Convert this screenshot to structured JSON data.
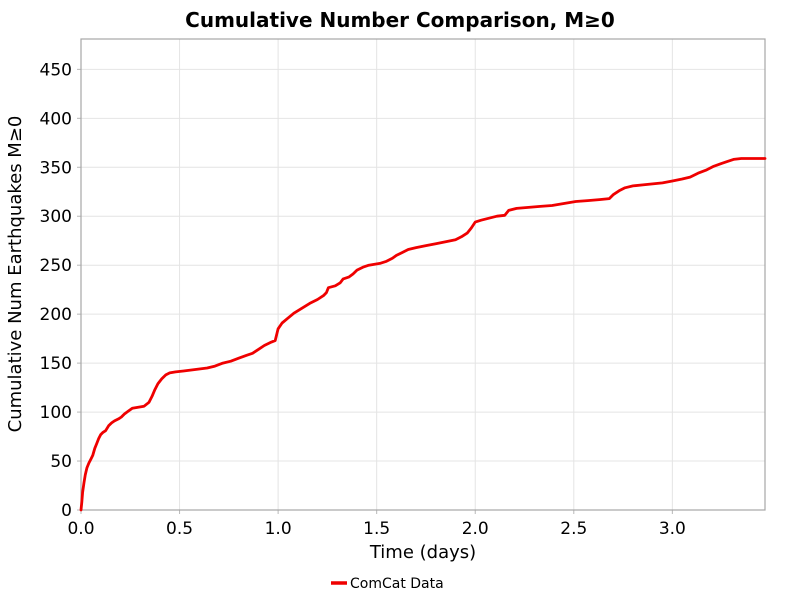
{
  "figure_title": "Cumulative Number Comparison, M≥0",
  "colors": {
    "series_red": "#ef0000",
    "grid": "#e4e4e4",
    "spine": "#a6a6a6",
    "text": "#000000",
    "background": "#ffffff"
  },
  "legend": {
    "items": [
      {
        "label": "ComCat Data",
        "color": "#ef0000",
        "marker": "line"
      }
    ]
  },
  "chart_data": {
    "type": "line",
    "title": "Cumulative Number Comparison, M≥0",
    "xlabel": "Time (days)",
    "ylabel": "Cumulative Num Earthquakes M≥0",
    "xlim": [
      0,
      3.47
    ],
    "ylim": [
      0,
      481
    ],
    "xticks": [
      0.0,
      0.5,
      1.0,
      1.5,
      2.0,
      2.5,
      3.0
    ],
    "yticks": [
      0,
      50,
      100,
      150,
      200,
      250,
      300,
      350,
      400,
      450
    ],
    "grid": true,
    "legend_position": "below",
    "series": [
      {
        "name": "ComCat Data",
        "color": "#ef0000",
        "x": [
          0,
          0.004,
          0.008,
          0.015,
          0.022,
          0.03,
          0.04,
          0.05,
          0.06,
          0.07,
          0.08,
          0.09,
          0.1,
          0.11,
          0.125,
          0.14,
          0.155,
          0.17,
          0.19,
          0.205,
          0.22,
          0.24,
          0.26,
          0.29,
          0.32,
          0.345,
          0.36,
          0.375,
          0.39,
          0.41,
          0.43,
          0.45,
          0.48,
          0.52,
          0.56,
          0.6,
          0.64,
          0.68,
          0.72,
          0.76,
          0.8,
          0.84,
          0.87,
          0.9,
          0.93,
          0.96,
          0.985,
          1.0,
          1.02,
          1.05,
          1.08,
          1.12,
          1.16,
          1.2,
          1.23,
          1.245,
          1.255,
          1.29,
          1.315,
          1.33,
          1.36,
          1.38,
          1.4,
          1.43,
          1.46,
          1.52,
          1.55,
          1.58,
          1.6,
          1.63,
          1.66,
          1.7,
          1.75,
          1.8,
          1.85,
          1.9,
          1.93,
          1.96,
          1.98,
          2.0,
          2.03,
          2.07,
          2.11,
          2.15,
          2.17,
          2.21,
          2.27,
          2.33,
          2.39,
          2.45,
          2.51,
          2.57,
          2.63,
          2.68,
          2.7,
          2.73,
          2.76,
          2.8,
          2.85,
          2.9,
          2.95,
          3.0,
          3.05,
          3.09,
          3.13,
          3.17,
          3.21,
          3.25,
          3.28,
          3.31,
          3.35,
          3.4,
          3.47
        ],
        "y": [
          0,
          8,
          18,
          28,
          36,
          43,
          48,
          52,
          56,
          63,
          68,
          73,
          77,
          79,
          81,
          86,
          89,
          91,
          93,
          95,
          98,
          101,
          104,
          105,
          106,
          110,
          116,
          123,
          129,
          134,
          138,
          140,
          141,
          142,
          143,
          144,
          145,
          147,
          150,
          152,
          155,
          158,
          160,
          164,
          168,
          171,
          173,
          185,
          191,
          196,
          201,
          206,
          211,
          215,
          219,
          222,
          227,
          229,
          232,
          236,
          238,
          241,
          245,
          248,
          250,
          252,
          254,
          257,
          260,
          263,
          266,
          268,
          270,
          272,
          274,
          276,
          279,
          283,
          288,
          294,
          296,
          298,
          300,
          301,
          306,
          308,
          309,
          310,
          311,
          313,
          315,
          316,
          317,
          318,
          322,
          326,
          329,
          331,
          332,
          333,
          334,
          336,
          338,
          340,
          344,
          347,
          351,
          354,
          356,
          358,
          359,
          359,
          359
        ]
      }
    ]
  }
}
